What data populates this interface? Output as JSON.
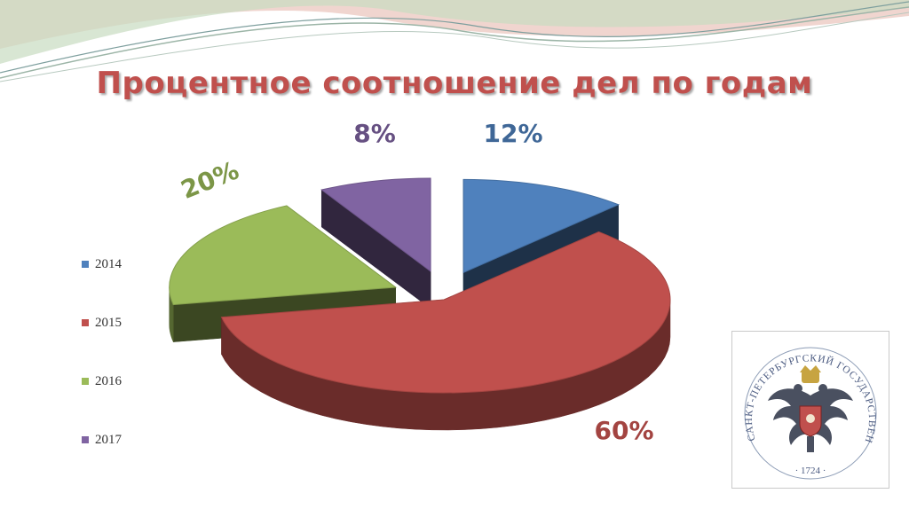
{
  "slide": {
    "title": "Процентное соотношение дел по годам"
  },
  "colors": {
    "title": "#c0504d",
    "2014": "#4f81bd",
    "2015": "#c0504d",
    "2016": "#9bbb59",
    "2017": "#8064a2"
  },
  "chart_data": {
    "type": "pie",
    "style": "3d-exploded",
    "title": "Процентное соотношение дел по годам",
    "legend_position": "left",
    "categories": [
      "2014",
      "2015",
      "2016",
      "2017"
    ],
    "values": [
      12,
      60,
      20,
      8
    ],
    "data_labels": [
      "12%",
      "60%",
      "20%",
      "8%"
    ]
  },
  "logo": {
    "name": "seal-icon",
    "arc_text": "САНКТ-ПЕТЕРБУРГСКИЙ ГОСУДАРСТВЕННЫЙ УНИВЕРСИТЕТ",
    "year_text": "· 1724 ·"
  }
}
